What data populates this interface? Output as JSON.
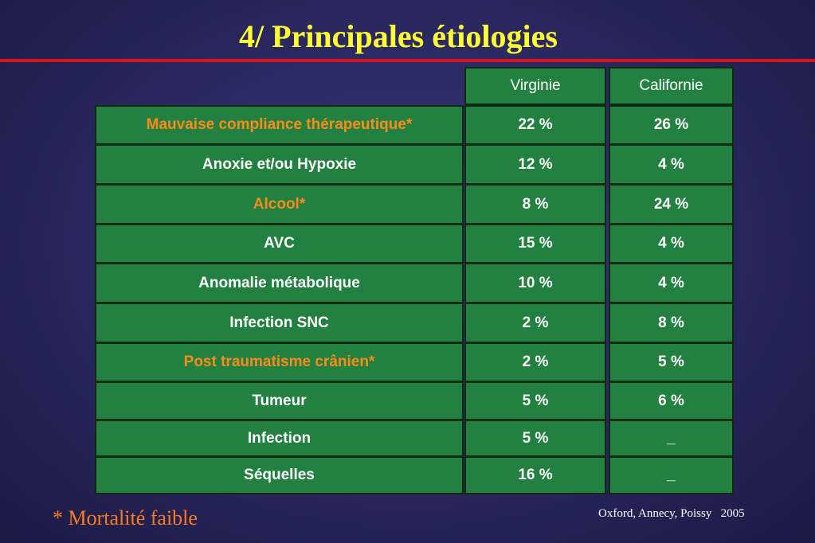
{
  "slide": {
    "title": "4/ Principales étiologies",
    "footnote": "* Mortalité faible",
    "source": "Oxford, Annecy, Poissy   2005"
  },
  "table": {
    "columns": [
      "Virginie",
      "Californie"
    ],
    "rows": [
      {
        "label": "Mauvaise compliance thérapeutique*",
        "mortality_low": true,
        "virginie": "22 %",
        "californie": "26 %"
      },
      {
        "label": "Anoxie et/ou  Hypoxie",
        "mortality_low": false,
        "virginie": "12 %",
        "californie": "4 %"
      },
      {
        "label": "Alcool*",
        "mortality_low": true,
        "virginie": "8 %",
        "californie": "24 %"
      },
      {
        "label": "AVC",
        "mortality_low": false,
        "virginie": "15 %",
        "californie": "4 %"
      },
      {
        "label": "Anomalie métabolique",
        "mortality_low": false,
        "virginie": "10 %",
        "californie": "4 %"
      },
      {
        "label": "Infection SNC",
        "mortality_low": false,
        "virginie": "2 %",
        "californie": "8 %"
      },
      {
        "label": "Post traumatisme crânien*",
        "mortality_low": true,
        "virginie": "2 %",
        "californie": "5 %"
      },
      {
        "label": "Tumeur",
        "mortality_low": false,
        "virginie": "5 %",
        "californie": "6 %"
      },
      {
        "label": "Infection",
        "mortality_low": false,
        "virginie": "5 %",
        "californie": "_"
      },
      {
        "label": "Séquelles",
        "mortality_low": false,
        "virginie": "16 %",
        "californie": "_"
      }
    ]
  },
  "colors": {
    "title": "#ffff33",
    "rule": "#d8141e",
    "cell_fill": "#228040",
    "highlight_text": "#ff8c1a",
    "normal_text": "#ffffff"
  }
}
